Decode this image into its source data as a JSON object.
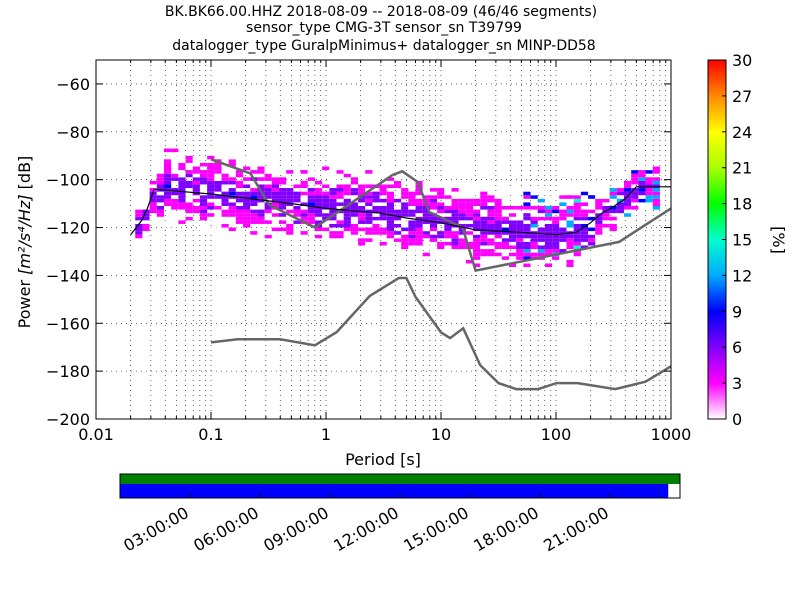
{
  "title_lines": [
    "BK.BK66.00.HHZ   2018-08-09 -- 2018-08-09  (46/46 segments)",
    "sensor_type CMG-3T sensor_sn T39799",
    "datalogger_type GuralpMinimus+ datalogger_sn MINP-DD58"
  ],
  "chart_data": {
    "type": "heatmap",
    "xlabel": "Period [s]",
    "ylabel": "Power [m²/s⁴/Hz] [dB]",
    "ylabel_prefix": "Power ",
    "ylabel_units": "[m²/s⁴/Hz]",
    "ylabel_suffix": " [dB]",
    "x_scale": "log",
    "xlim": [
      0.01,
      1000
    ],
    "ylim": [
      -200,
      -50
    ],
    "x_ticks": [
      0.01,
      0.1,
      1,
      10,
      100,
      1000
    ],
    "x_tick_labels": [
      "0.01",
      "0.1",
      "1",
      "10",
      "100",
      "1000"
    ],
    "y_ticks": [
      -200,
      -180,
      -160,
      -140,
      -120,
      -100,
      -80,
      -60
    ],
    "y_tick_labels": [
      "−200",
      "−180",
      "−160",
      "−140",
      "−120",
      "−100",
      "−80",
      "−60"
    ],
    "grid": "dotted",
    "colorbar": {
      "label": "[%]",
      "range": [
        0,
        30
      ],
      "ticks": [
        0,
        3,
        6,
        9,
        12,
        15,
        18,
        21,
        24,
        27,
        30
      ],
      "colormap": [
        "#ffffff",
        "#ff00ff",
        "#8000ff",
        "#0000ff",
        "#00aaff",
        "#00ffcc",
        "#00ff00",
        "#aaff00",
        "#ffff00",
        "#ff8800",
        "#ff0000"
      ]
    },
    "series": [
      {
        "role": "high-noise-model",
        "color": "#666666",
        "points": [
          [
            0.1,
            -91.5
          ],
          [
            0.22,
            -97.4
          ],
          [
            0.32,
            -110.5
          ],
          [
            0.8,
            -120
          ],
          [
            3.8,
            -98
          ],
          [
            4.6,
            -96.5
          ],
          [
            6.3,
            -101
          ],
          [
            7.9,
            -113.5
          ],
          [
            15.4,
            -120
          ],
          [
            20,
            -138
          ],
          [
            354,
            -126
          ],
          [
            1000,
            -112
          ]
        ]
      },
      {
        "role": "low-noise-model",
        "color": "#666666",
        "points": [
          [
            0.1,
            -168
          ],
          [
            0.17,
            -166.7
          ],
          [
            0.4,
            -166.7
          ],
          [
            0.8,
            -169.2
          ],
          [
            1.24,
            -163.7
          ],
          [
            2.4,
            -148.6
          ],
          [
            4.3,
            -141.1
          ],
          [
            5,
            -141.1
          ],
          [
            6,
            -149
          ],
          [
            10,
            -163.8
          ],
          [
            12,
            -166.2
          ],
          [
            15.6,
            -162.1
          ],
          [
            21.9,
            -177.5
          ],
          [
            31.6,
            -185
          ],
          [
            45,
            -187.5
          ],
          [
            70,
            -187.5
          ],
          [
            101,
            -185
          ],
          [
            154,
            -185
          ],
          [
            328,
            -187.5
          ],
          [
            600,
            -184.4
          ],
          [
            1000,
            -178
          ]
        ]
      },
      {
        "role": "mode",
        "color": "#000000",
        "points": [
          [
            0.02,
            -123
          ],
          [
            0.025,
            -117
          ],
          [
            0.028,
            -112
          ],
          [
            0.032,
            -104
          ],
          [
            0.1,
            -106
          ],
          [
            0.5,
            -110
          ],
          [
            1,
            -112
          ],
          [
            3,
            -114
          ],
          [
            5,
            -116
          ],
          [
            10,
            -118
          ],
          [
            20,
            -121
          ],
          [
            50,
            -122
          ],
          [
            100,
            -123
          ],
          [
            150,
            -122
          ],
          [
            200,
            -118
          ],
          [
            250,
            -114
          ],
          [
            300,
            -112
          ],
          [
            400,
            -108
          ],
          [
            500,
            -103
          ],
          [
            1000,
            -103
          ]
        ]
      }
    ],
    "heatmap_cells": [
      [
        -7,
        -100,
        5
      ],
      [
        -7,
        -98,
        8
      ],
      [
        -7,
        -96,
        12
      ],
      [
        -7,
        -94,
        6
      ],
      [
        -7,
        -92,
        4
      ],
      [
        -6,
        -98,
        6
      ],
      [
        -6,
        -96,
        10
      ],
      [
        -6,
        -94,
        8
      ],
      [
        -6,
        -92,
        4
      ],
      [
        -5,
        -98,
        5
      ],
      [
        -5,
        -96,
        8
      ],
      [
        -5,
        -94,
        6
      ],
      [
        -4,
        -98,
        4
      ],
      [
        -4,
        -96,
        7
      ],
      [
        -4,
        -94,
        5
      ],
      [
        -3,
        -98,
        3
      ],
      [
        -3,
        -96,
        5
      ],
      [
        -3,
        -94,
        4
      ]
    ]
  },
  "time_axis": {
    "tick_labels": [
      "03:00:00",
      "06:00:00",
      "09:00:00",
      "12:00:00",
      "15:00:00",
      "18:00:00",
      "21:00:00"
    ],
    "coverage_color": "#0000ff",
    "availability_color": "#008000",
    "coverage_fraction": 0.979
  }
}
